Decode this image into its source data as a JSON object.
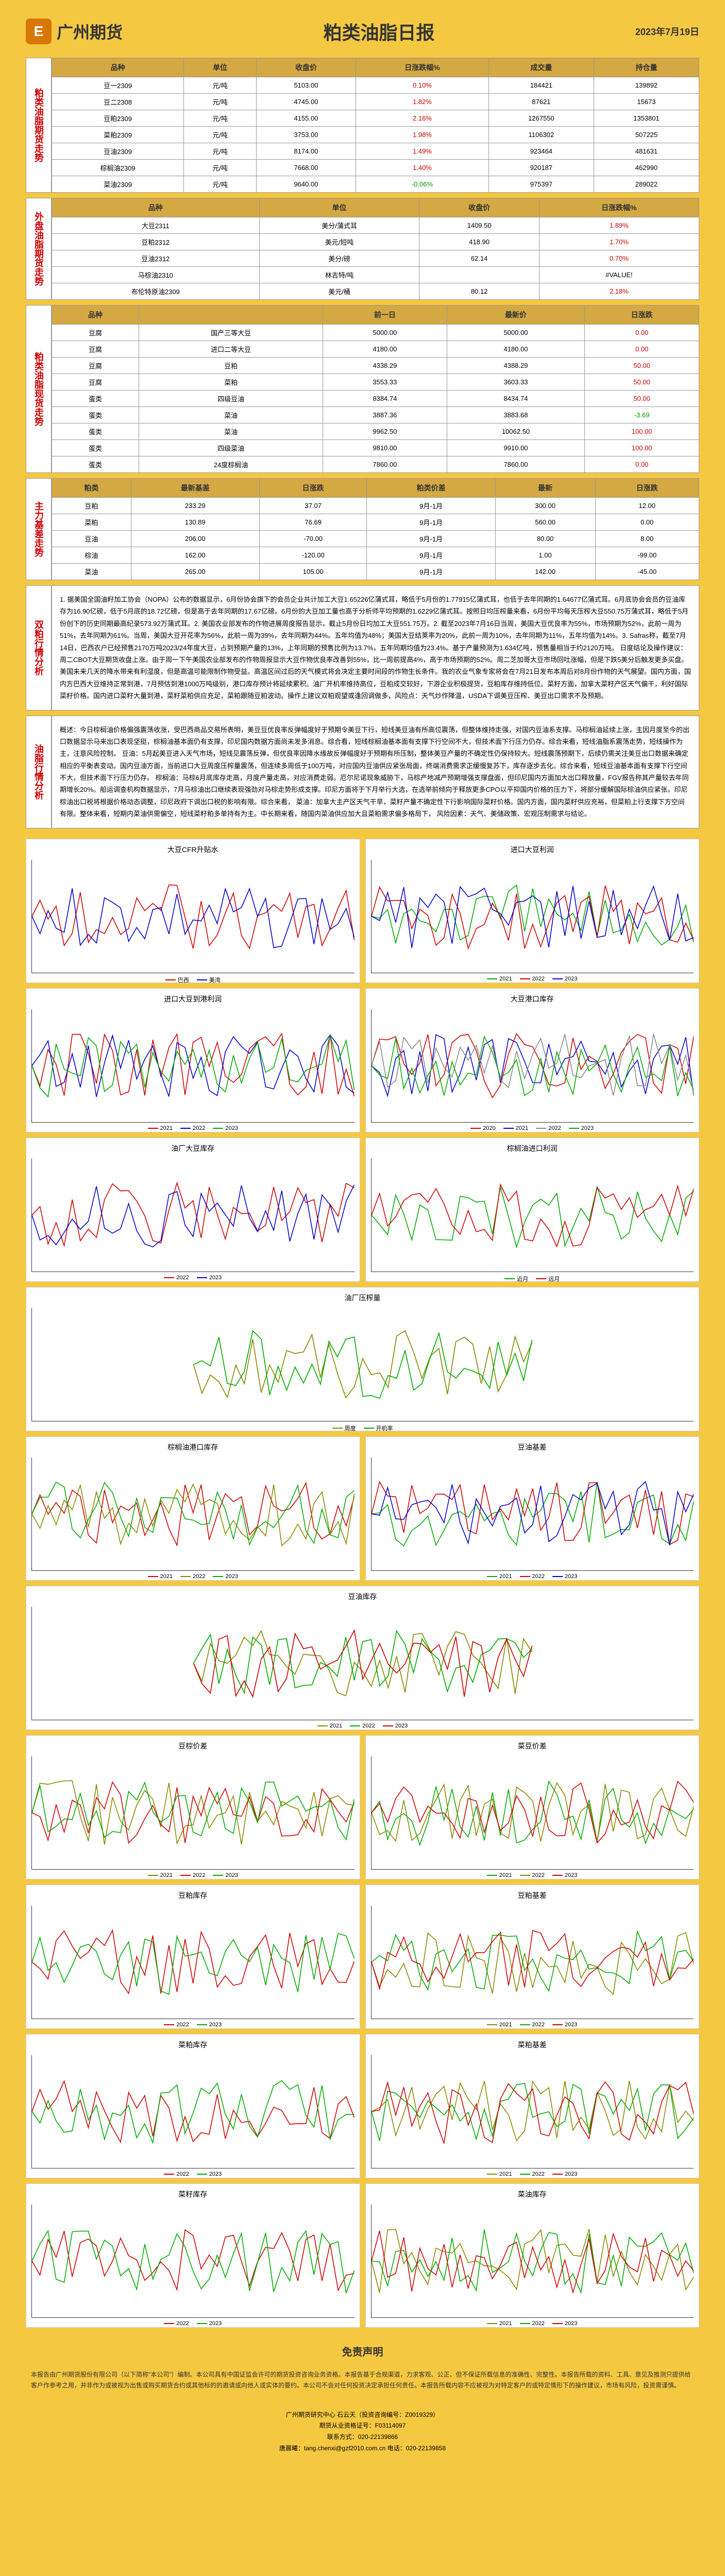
{
  "header": {
    "logo_text": "广州期货",
    "logo_icon": "E",
    "title": "粕类油脂日报",
    "date": "2023年7月19日"
  },
  "sections": {
    "s1": {
      "label": "粕类油脂期货走势"
    },
    "s2": {
      "label": "外盘油脂期货走势"
    },
    "s3": {
      "label": "粕类油脂现货走势"
    },
    "s4": {
      "label": "主力基差走势"
    },
    "s5": {
      "label": "双粕行情分析"
    },
    "s6": {
      "label": "油脂行情分析"
    }
  },
  "table1": {
    "headers": [
      "品种",
      "单位",
      "收盘价",
      "日涨跌幅%",
      "成交量",
      "持仓量"
    ],
    "rows": [
      [
        "豆一2309",
        "元/吨",
        "5103.00",
        "0.10%",
        "184421",
        "139892"
      ],
      [
        "豆二2308",
        "元/吨",
        "4745.00",
        "1.82%",
        "87621",
        "15673"
      ],
      [
        "豆粕2309",
        "元/吨",
        "4155.00",
        "2.16%",
        "1267550",
        "1353801"
      ],
      [
        "菜粕2309",
        "元/吨",
        "3753.00",
        "1.98%",
        "1106302",
        "507225"
      ],
      [
        "豆油2309",
        "元/吨",
        "8174.00",
        "1.49%",
        "923464",
        "481631"
      ],
      [
        "棕榈油2309",
        "元/吨",
        "7668.00",
        "1.40%",
        "920187",
        "462990"
      ],
      [
        "菜油2309",
        "元/吨",
        "9640.00",
        "-0.06%",
        "975397",
        "289022"
      ]
    ]
  },
  "table2": {
    "headers": [
      "品种",
      "单位",
      "收盘价",
      "日涨跌幅%"
    ],
    "rows": [
      [
        "大豆2311",
        "美分/蒲式耳",
        "1409.50",
        "1.89%"
      ],
      [
        "豆粕2312",
        "美元/短吨",
        "418.90",
        "1.70%"
      ],
      [
        "豆油2312",
        "美分/磅",
        "62.14",
        "0.70%"
      ],
      [
        "马棕油2310",
        "林吉特/吨",
        "",
        "#VALUE!"
      ],
      [
        "布伦特原油2309",
        "美元/桶",
        "80.12",
        "2.18%"
      ]
    ]
  },
  "table3": {
    "headers": [
      "品种",
      "",
      "前一日",
      "最新价",
      "日涨跌"
    ],
    "rows": [
      [
        "豆腐",
        "国产三等大豆",
        "5000.00",
        "5000.00",
        "0.00"
      ],
      [
        "豆腐",
        "进口二等大豆",
        "4180.00",
        "4180.00",
        "0.00"
      ],
      [
        "豆腐",
        "豆粕",
        "4338.29",
        "4388.29",
        "50.00"
      ],
      [
        "豆腐",
        "菜粕",
        "3553.33",
        "3603.33",
        "50.00"
      ],
      [
        "蛋类",
        "四级豆油",
        "8384.74",
        "8434.74",
        "50.00"
      ],
      [
        "蛋类",
        "菜油",
        "3887.36",
        "3883.68",
        "-3.69"
      ],
      [
        "蛋类",
        "菜油",
        "9962.50",
        "10062.50",
        "100.00"
      ],
      [
        "蛋类",
        "四级菜油",
        "9810.00",
        "9910.00",
        "100.00"
      ],
      [
        "蛋类",
        "24度棕榈油",
        "7860.00",
        "7860.00",
        "0.00"
      ]
    ]
  },
  "table4": {
    "headers": [
      "粕类",
      "最新基差",
      "日涨跌",
      "粕类价差",
      "最新",
      "日涨跌"
    ],
    "rows": [
      [
        "豆粕",
        "233.29",
        "37.07",
        "9月-1月",
        "300.00",
        "12.00"
      ],
      [
        "菜粕",
        "130.89",
        "76.69",
        "9月-1月",
        "560.00",
        "0.00"
      ],
      [
        "豆油",
        "206.00",
        "-70.00",
        "9月-1月",
        "80.00",
        "8.00"
      ],
      [
        "棕油",
        "162.00",
        "-120.00",
        "9月-1月",
        "1.00",
        "-99.00"
      ],
      [
        "菜油",
        "265.00",
        "105.00",
        "9月-1月",
        "142.00",
        "-45.00"
      ]
    ]
  },
  "analysis1": "1. 据美国全国油籽加工协会（NOPA）公布的数据显示，6月份协会旗下的会员企业共计加工大豆1.65226亿蒲式耳，略低于5月份的1.77915亿蒲式耳，也低于去年同期的1.64677亿蒲式耳。6月底协会会员的豆油库存为16.90亿磅，低于5月底的18.72亿磅，但是高于去年同期的17.67亿磅。6月份的大豆加工量也高于分析师平均预期的1.6229亿蒲式耳。按照日均压榨量来看，6月份平均每天压榨大豆550.75万蒲式耳，略低于5月份创下的历史同期最高纪录573.92万蒲式耳。2. 美国农业部发布的作物进展周度报告显示，截止5月份日均加工大豆551.75万。2. 截至2023年7月16日当周，美国大豆优良率为55%，市场预期为52%，此前一周为51%，去年同期为61%。当周，美国大豆开花率为56%，此前一周为39%，去年同期为44%。五年均值为48%；美国大豆结荚率为20%，此前一周为10%，去年同期为11%，五年均值为14%。3. Safras称，截至7月14日，巴西农户已经预售2170万吨2023/24年度大豆，占到预期产量的13%，上年同期的预售比例为13.7%，五年同期均值为23.4%。基于产量预测为1.634亿吨，预售量相当于约2120万吨。\n日度结论及操作建议：周二CBOT大豆期货收盘上涨。由于周一下午美国农业部发布的作物周报显示大豆作物优良率改善到55%，比一周前提高4%，高于市场预期的52%。周二芝加哥大豆市场回吐涨幅，但是下跌5美分后触发更多买盘。美国未来几天的降水带来有利湿度，但是高温可能限制作物受益。高温区间过后的天气模式将会决定主要时间段的作物生长条件。我的农业气象专家将会在7月21日发布本周后对8月份作物的天气展望。国内方面，国内方巴西大豆维持正常到港，7月预估到港1000万吨级别，港口库存预计将延续累积。油厂开机率维持高位，豆粕成交较好，下游企业积极提货，豆粕库存维持低位。菜籽方面，加拿大菜籽产区天气偏干，利好国际菜籽价格。国内进口菜籽大量到港，菜籽菜粕供应充足，菜粕跟随豆粕波动。操作上建议双粕观望或逢回调做多，风险点：天气炒作降温，USDA下调美豆压榨、美豆出口需求不及预期。",
  "analysis2": "概述：今日棕榈油价格偏强震荡收涨，受巴西商品交易所表明，美豆豆优良率反弹幅度好于预期令美豆下行，短线美豆油有所高位震荡，但整体维持走强，对国内豆油系支撑。马棕榈油延续上涨，主因月度至今的出口数据显示马来出口表现坚挺，棕榈油基本面仍有支撑，印尼国内数据方面尚未发多消息。综合看，短线棕榈油基本面有支撑下行空间不大，但技术面下行压力仍存。综合来看，短线油脂系震荡走势，短线操作为主，注意风险控制。\n    豆油：5月起美豆进入天气市场，短线见震荡反弹，但优良率因降水缘故反弹幅度好于预期有所压制，整体美豆产量的不确定性仍保持较大。短线震荡预期下，后续仍需关注美豆出口数据来确定相应的平衡表变动。国内豆油方面，当前进口大豆周度压榨量震荡，但连续多周低于100万吨，对应国内豆油供应紧张局面，终端消费需求正缓慢复苏下，库存逐步去化。综合来看，短线豆油基本面有支撑下行空间不大，但技术面下行压力仍存。\n    棕榈油：马棕6月底库存走高，月度产量走高，对应消费走弱。厄尔尼诺现象威胁下，马棕产地减产预期增强支撑盘面，但印尼国内方面加大出口释放量，FGV报告称其产量较去年同期增长20%。船运调查机构数据显示，7月马棕油出口继续表现强劲对马棕走势形成支撑。印尼方面将于下月举行大选，在选举前倾向于释放更多CPO以平抑国内价格的压力下，将部分缓解国际棕油供应紧张。印尼棕油出口税将根据价格动态调整，印尼政府下调出口税的影响有限。综合来看，\n    菜油：加拿大主产区天气干旱，菜籽产量不确定性下行影响国际菜籽价格。国内方面，国内菜籽供应充裕，但菜粕上行支撑下方空间有限。整体来看，短期内菜油供需偏空，短线菜籽粕多单持有为主。中长期来看，随国内菜油供应加大且菜粕需求偏多格局下，\n风险因素：天气、美储政策、宏观压制需求与结论。",
  "charts": [
    {
      "title": "大豆CFR升贴水",
      "colors": [
        "#c00",
        "#00c"
      ],
      "legend": [
        "巴西",
        "美湾"
      ]
    },
    {
      "title": "进口大豆利润",
      "colors": [
        "#0a0",
        "#c00",
        "#00c"
      ],
      "legend": [
        "2021",
        "2022",
        "2023"
      ]
    },
    {
      "title": "进口大豆到港利润",
      "colors": [
        "#c00",
        "#00c",
        "#0a0"
      ],
      "legend": [
        "2021",
        "2022",
        "2023"
      ]
    },
    {
      "title": "大豆港口库存",
      "colors": [
        "#c00",
        "#00c",
        "#888",
        "#0a0"
      ],
      "legend": [
        "2020",
        "2021",
        "2022",
        "2023"
      ]
    },
    {
      "title": "油厂大豆库存",
      "colors": [
        "#c00",
        "#00c"
      ],
      "legend": [
        "2022",
        "2023"
      ]
    },
    {
      "title": "棕榈油进口利润",
      "colors": [
        "#0a0",
        "#c00"
      ],
      "legend": [
        "近月",
        "远月"
      ]
    },
    {
      "title": "油厂压榨量",
      "colors": [
        "#880",
        "#0a0"
      ],
      "legend": [
        "周度",
        "开机率"
      ],
      "full": true
    },
    {
      "title": "棕榈油港口库存",
      "colors": [
        "#c00",
        "#880",
        "#0a0"
      ],
      "legend": [
        "2021",
        "2022",
        "2023"
      ]
    },
    {
      "title": "豆油基差",
      "colors": [
        "#0a0",
        "#c00",
        "#00c"
      ],
      "legend": [
        "2021",
        "2022",
        "2023"
      ]
    },
    {
      "title": "豆油库存",
      "colors": [
        "#880",
        "#0a0",
        "#c00"
      ],
      "legend": [
        "2021",
        "2022",
        "2023"
      ],
      "full": true
    },
    {
      "title": "豆棕价差",
      "colors": [
        "#880",
        "#c00",
        "#0a0"
      ],
      "legend": [
        "2021",
        "2022",
        "2023"
      ]
    },
    {
      "title": "菜豆价差",
      "colors": [
        "#0a0",
        "#880",
        "#c00"
      ],
      "legend": [
        "2021",
        "2022",
        "2023"
      ]
    },
    {
      "title": "豆粕库存",
      "colors": [
        "#c00",
        "#0a0"
      ],
      "legend": [
        "2022",
        "2023"
      ]
    },
    {
      "title": "豆粕基差",
      "colors": [
        "#880",
        "#0a0",
        "#c00"
      ],
      "legend": [
        "2021",
        "2022",
        "2023"
      ]
    },
    {
      "title": "菜粕库存",
      "colors": [
        "#c00",
        "#0a0"
      ],
      "legend": [
        "2022",
        "2023"
      ]
    },
    {
      "title": "菜粕基差",
      "colors": [
        "#880",
        "#0a0",
        "#c00"
      ],
      "legend": [
        "2021",
        "2022",
        "2023"
      ]
    },
    {
      "title": "菜籽库存",
      "colors": [
        "#c00",
        "#0a0"
      ],
      "legend": [
        "2022",
        "2023"
      ]
    },
    {
      "title": "菜油库存",
      "colors": [
        "#880",
        "#0a0",
        "#c00"
      ],
      "legend": [
        "2021",
        "2022",
        "2023"
      ]
    }
  ],
  "disclaimer": {
    "title": "免责声明",
    "text": "本报告由广州期货股份有限公司（以下简称\"本公司\"）编制。本公司具有中国证监会许可的期货投资咨询业务资格。本报告基于合规渠道，力求客观、公正、但不保证所载信息的准确性、完整性。本报告所载的资料、工具、意见及推测只提供给客户作参考之用，并非作为或被视为出售或购买期货合约或其他标的的邀请或向他人或实体的要约。本公司不会对任何投资决定承担任何责任。本报告所载内容不应被视为对特定客户的或特定情形下的操作建议，市场有风险，投资需谨慎。"
  },
  "footer": {
    "line1": "广州期货研究中心   石云天（投资咨询编号：Z0019329）",
    "line2": "期货从业资格证号：F03114097",
    "line3": "联系方式：020-22139866",
    "line4": "唐晨曦：tang.chenxi@gzf2010.com.cn   电话：020-22139858"
  },
  "style": {
    "bg": "#f5c842",
    "header_bg": "#d4a843",
    "red": "#c00",
    "green": "#090"
  }
}
